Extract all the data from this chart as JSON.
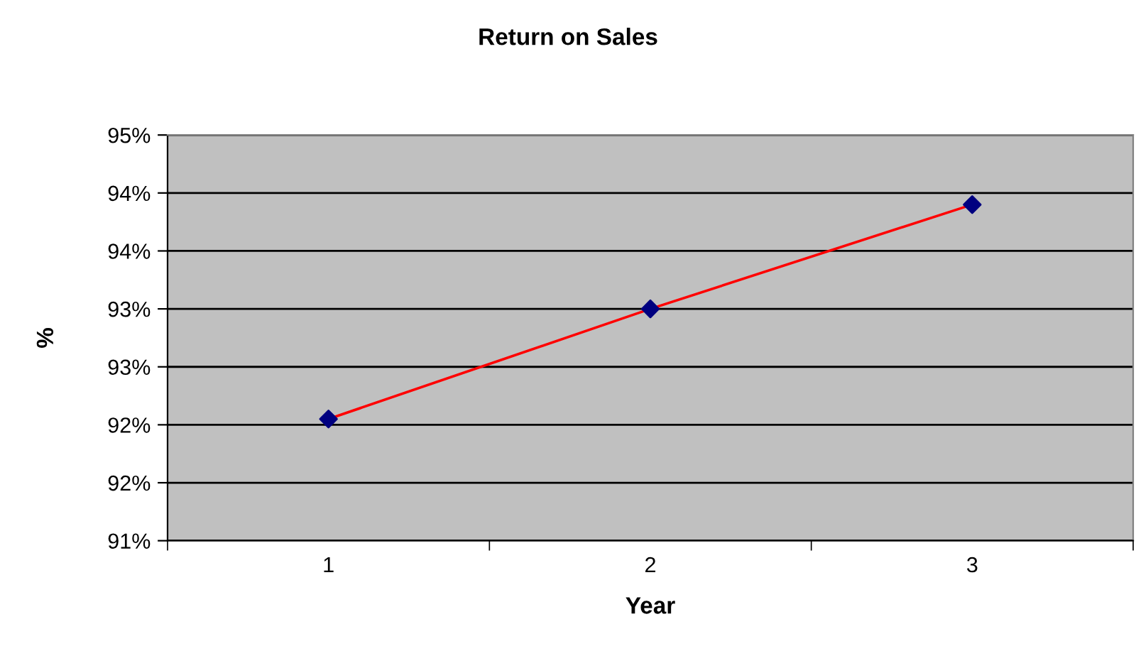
{
  "chart_data": {
    "type": "line",
    "title": "Return on Sales",
    "xlabel": "Year",
    "ylabel": "%",
    "categories": [
      "1",
      "2",
      "3"
    ],
    "series": [
      {
        "color": "#ff0000",
        "colors": [
          "#000080",
          "#000080",
          "#000080"
        ],
        "values": [
          92.05,
          93.0,
          93.9
        ]
      }
    ],
    "marker": "diamond",
    "line_style": "solid",
    "grid": "y",
    "legend": false,
    "ylim": [
      91,
      94.5
    ],
    "yticks": [
      {
        "value": 91,
        "label": "91%"
      },
      {
        "value": 91.5,
        "label": "92%"
      },
      {
        "value": 92,
        "label": "92%"
      },
      {
        "value": 92.5,
        "label": "93%"
      },
      {
        "value": 93,
        "label": "93%"
      },
      {
        "value": 93.5,
        "label": "94%"
      },
      {
        "value": 94,
        "label": "94%"
      },
      {
        "value": 94.5,
        "label": "95%"
      }
    ]
  }
}
